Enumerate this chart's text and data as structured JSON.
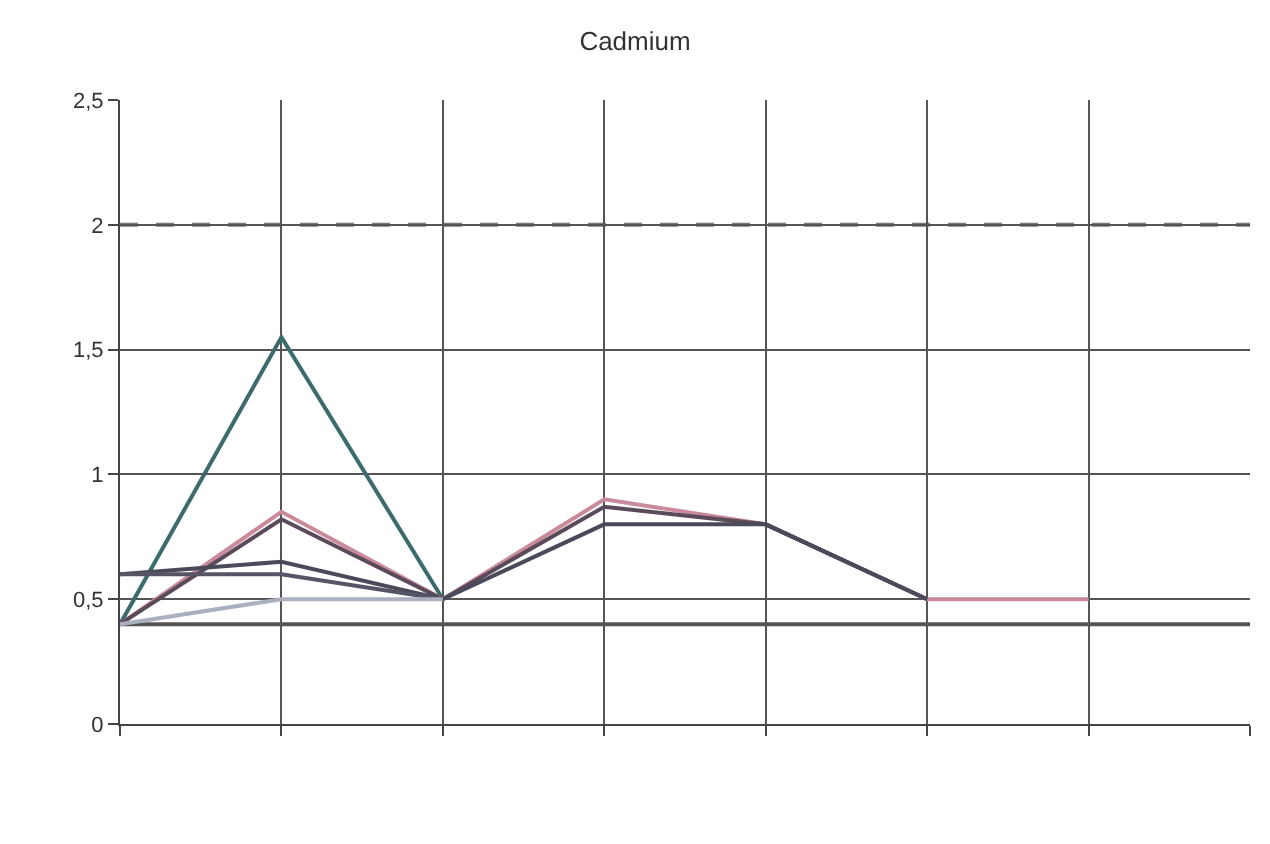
{
  "chart_data": {
    "type": "line",
    "title": "Cadmium",
    "categories": [
      null,
      null,
      null,
      null,
      null,
      null,
      null,
      null
    ],
    "series": [
      {
        "color": "#3d6b6b",
        "values": [
          0.4,
          1.55,
          0.5,
          null,
          null,
          null,
          null,
          null
        ]
      },
      {
        "color": "#c98a9a",
        "values": [
          0.4,
          0.85,
          0.5,
          0.9,
          0.8,
          0.5,
          0.5,
          null
        ]
      },
      {
        "color": "#5a4a5a",
        "values": [
          0.4,
          0.82,
          0.5,
          0.87,
          0.8,
          0.5,
          null,
          null
        ]
      },
      {
        "color": "#4a4a5a",
        "values": [
          0.6,
          0.65,
          0.5,
          0.8,
          0.8,
          0.5,
          null,
          null
        ]
      },
      {
        "color": "#555566",
        "values": [
          0.6,
          0.6,
          0.5,
          null,
          null,
          null,
          null,
          null
        ]
      },
      {
        "color": "#aab0c0",
        "values": [
          0.4,
          0.5,
          0.5,
          null,
          null,
          null,
          null,
          null
        ]
      }
    ],
    "ref_lines": [
      {
        "axis": "y",
        "value": 2,
        "color": "#777777",
        "line_style": "dashed"
      },
      {
        "axis": "y",
        "value": 0.4,
        "color": "#555555",
        "line_style": "solid"
      }
    ],
    "ylim": [
      0,
      2.5
    ],
    "yticks": [
      0,
      {
        "value": 0.5,
        "label": "0,5"
      },
      1,
      {
        "value": 1.5,
        "label": "1,5"
      },
      2,
      {
        "value": 2.5,
        "label": "2,5"
      }
    ],
    "grid": true,
    "marker": "none",
    "line_style": "solid"
  }
}
